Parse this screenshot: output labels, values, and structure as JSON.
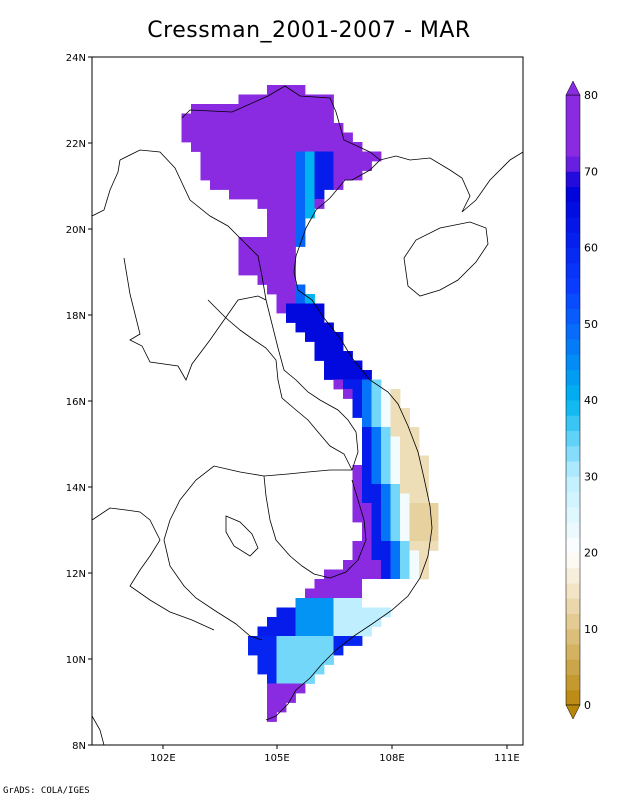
{
  "title": "Cressman_2001-2007 - MAR",
  "credit": "GrADS: COLA/IGES",
  "map": {
    "lat_labels": [
      "24N",
      "22N",
      "20N",
      "18N",
      "16N",
      "14N",
      "12N",
      "10N",
      "8N"
    ],
    "lon_labels": [
      "102E",
      "105E",
      "108E",
      "111E"
    ]
  },
  "colorbar": {
    "labels": [
      "0",
      "10",
      "20",
      "30",
      "40",
      "50",
      "60",
      "70",
      "80"
    ],
    "min": 0,
    "max": 80,
    "colors": {
      "brown_dark": "#b8860b",
      "tan": "#f2e4c4",
      "white": "#ffffff",
      "light_cyan": "#bfefff",
      "cyan": "#00b4f0",
      "blue": "#0a3cff",
      "deep_blue": "#0000d8",
      "purple": "#8a2be2"
    }
  }
}
